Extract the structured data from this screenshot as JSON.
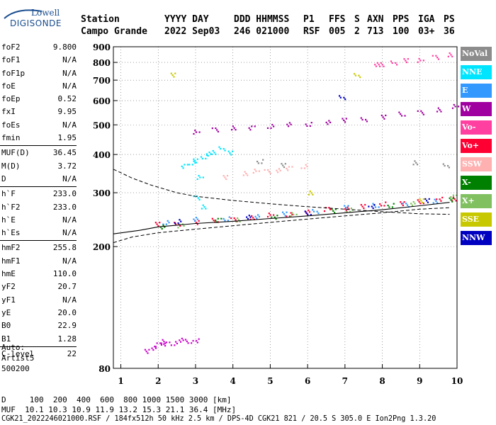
{
  "header": {
    "logo_top": "Lowell",
    "logo_main": "DIGISONDE",
    "labels": [
      "Station",
      "YYYY DAY",
      "DDD HHMMSS",
      "P1",
      "FFS",
      "S",
      "AXN",
      "PPS",
      "IGA",
      "PS"
    ],
    "values": [
      "Campo Grande",
      "2022 Sep03",
      "246 021000",
      "RSF",
      "005",
      "2",
      "713",
      "100",
      "03+",
      "36"
    ]
  },
  "params": [
    {
      "key": "foF2",
      "value": "9.800"
    },
    {
      "key": "foF1",
      "value": "N/A"
    },
    {
      "key": "foF1p",
      "value": "N/A"
    },
    {
      "key": "foE",
      "value": "N/A"
    },
    {
      "key": "foEp",
      "value": "0.52"
    },
    {
      "key": "fxI",
      "value": "9.95"
    },
    {
      "key": "foEs",
      "value": "N/A"
    },
    {
      "key": "fmin",
      "value": "1.95"
    },
    {
      "sep": true
    },
    {
      "key": "MUF(D)",
      "value": "36.45"
    },
    {
      "key": "M(D)",
      "value": "3.72"
    },
    {
      "key": "D",
      "value": "N/A"
    },
    {
      "sep": true
    },
    {
      "key": "h`F",
      "value": "233.0"
    },
    {
      "key": "h`F2",
      "value": "233.0"
    },
    {
      "key": "h`E",
      "value": "N/A"
    },
    {
      "key": "h`Es",
      "value": "N/A"
    },
    {
      "sep": true
    },
    {
      "key": "hmF2",
      "value": "255.8"
    },
    {
      "key": "hmF1",
      "value": "N/A"
    },
    {
      "key": "hmE",
      "value": "110.0"
    },
    {
      "key": "yF2",
      "value": "20.7"
    },
    {
      "key": "yF1",
      "value": "N/A"
    },
    {
      "key": "yE",
      "value": "20.0"
    },
    {
      "key": "B0",
      "value": "22.9"
    },
    {
      "key": "B1",
      "value": "1.28"
    },
    {
      "sep": true
    },
    {
      "key": "C-level",
      "value": "22"
    }
  ],
  "auto": {
    "line1": "Auto:",
    "line2": "Artist5",
    "line3": "500200"
  },
  "legend": [
    {
      "label": "NoVal",
      "color": "#8c8c8c"
    },
    {
      "label": "NNE",
      "color": "#00e5ff"
    },
    {
      "label": "E",
      "color": "#3399ff"
    },
    {
      "label": "W",
      "color": "#a000a0"
    },
    {
      "label": "Vo-",
      "color": "#ff40a0"
    },
    {
      "label": "Vo+",
      "color": "#ff0033"
    },
    {
      "label": "SSW",
      "color": "#ffb0b0"
    },
    {
      "label": "X-",
      "color": "#008000"
    },
    {
      "label": "X+",
      "color": "#80c060"
    },
    {
      "label": "SSE",
      "color": "#c8c800"
    },
    {
      "label": "NNW",
      "color": "#0000c0"
    }
  ],
  "footer": {
    "d_line": "D     100  200  400  600  800 1000 1500 3000 [km]",
    "muf_line": "MUF  10.1 10.3 10.9 11.9 13.2 15.3 21.1 36.4 [MHz]",
    "file_line": "CGK21_2022246021000.RSF / 184fx512h 50 kHz 2.5 km / DPS-4D CGK21 821 / 20.5 S 305.0 E Ion2Png 1.3.20"
  },
  "chart_data": {
    "type": "scatter",
    "x_ticks": [
      "1",
      "2",
      "3",
      "4",
      "5",
      "6",
      "7",
      "8",
      "9",
      "10"
    ],
    "y_ticks": [
      "80",
      "200",
      "300",
      "400",
      "500",
      "600",
      "700",
      "800",
      "900"
    ],
    "xlim": [
      0.8,
      10
    ],
    "ylim": [
      80,
      900
    ],
    "y_scale": "log",
    "grid": "dotted",
    "series": [
      {
        "name": "Vo+",
        "color": "#ff0033",
        "points": [
          [
            2,
            237
          ],
          [
            2.5,
            239
          ],
          [
            3,
            241
          ],
          [
            3.5,
            244
          ],
          [
            4,
            247
          ],
          [
            4.5,
            250
          ],
          [
            5,
            254
          ],
          [
            5.5,
            257
          ],
          [
            6,
            261
          ],
          [
            6.5,
            265
          ],
          [
            7,
            268
          ],
          [
            7.5,
            272
          ],
          [
            8,
            276
          ],
          [
            8.5,
            279
          ],
          [
            9,
            282
          ],
          [
            9.5,
            286
          ],
          [
            9.9,
            289
          ]
        ]
      },
      {
        "name": "E",
        "color": "#3399ff",
        "points": [
          [
            2.2,
            241
          ],
          [
            3,
            246
          ],
          [
            3.8,
            249
          ],
          [
            4.6,
            252
          ],
          [
            5.4,
            256
          ],
          [
            6.2,
            263
          ],
          [
            7,
            270
          ],
          [
            7.8,
            273
          ],
          [
            8.6,
            276
          ],
          [
            9.4,
            283
          ]
        ]
      },
      {
        "name": "W",
        "color": "#a000a0",
        "points": [
          [
            3,
            478
          ],
          [
            3.5,
            484
          ],
          [
            4,
            489
          ],
          [
            4.5,
            493
          ],
          [
            5,
            497
          ],
          [
            5.5,
            502
          ],
          [
            6,
            507
          ],
          [
            6.5,
            512
          ],
          [
            7,
            518
          ],
          [
            7.5,
            525
          ],
          [
            8,
            533
          ],
          [
            8.5,
            543
          ],
          [
            9,
            553
          ],
          [
            9.5,
            563
          ],
          [
            9.95,
            575
          ]
        ]
      },
      {
        "name": "Vo-",
        "color": "#ff40a0",
        "points": [
          [
            7.8,
            788
          ],
          [
            8,
            794
          ],
          [
            8.3,
            801
          ],
          [
            8.6,
            812
          ],
          [
            9,
            820
          ],
          [
            9.4,
            835
          ],
          [
            9.8,
            848
          ]
        ]
      },
      {
        "name": "NNE",
        "color": "#00e5ff",
        "points": [
          [
            2.7,
            368
          ],
          [
            2.9,
            376
          ],
          [
            3,
            385
          ],
          [
            3.2,
            395
          ],
          [
            3.3,
            402
          ],
          [
            3.5,
            410
          ],
          [
            3.7,
            420
          ],
          [
            3.9,
            405
          ],
          [
            3.1,
            340
          ],
          [
            3,
            290
          ],
          [
            3.2,
            270
          ]
        ]
      },
      {
        "name": "SSW",
        "color": "#ffb0b0",
        "points": [
          [
            4.3,
            350
          ],
          [
            4.6,
            355
          ],
          [
            4.9,
            352
          ],
          [
            5.2,
            358
          ],
          [
            5.5,
            362
          ],
          [
            5.9,
            366
          ],
          [
            3.8,
            340
          ]
        ]
      },
      {
        "name": "NoVal",
        "color": "#8c8c8c",
        "points": [
          [
            4.7,
            380
          ],
          [
            5.3,
            372
          ],
          [
            8.9,
            378
          ],
          [
            9.7,
            368
          ]
        ]
      },
      {
        "name": "X-",
        "color": "#008000",
        "points": [
          [
            2.1,
            233
          ],
          [
            3.6,
            244
          ],
          [
            5.1,
            252
          ],
          [
            6.7,
            263
          ],
          [
            8.2,
            273
          ],
          [
            9.8,
            287
          ]
        ]
      },
      {
        "name": "X+",
        "color": "#80c060",
        "points": [
          [
            2.6,
            236
          ],
          [
            4.1,
            246
          ],
          [
            5.6,
            255
          ],
          [
            7.1,
            266
          ],
          [
            8.8,
            278
          ],
          [
            9.9,
            291
          ]
        ]
      },
      {
        "name": "SSE",
        "color": "#c8c800",
        "points": [
          [
            2.4,
            728
          ],
          [
            7.3,
            732
          ],
          [
            9,
            284
          ],
          [
            6.1,
            300
          ]
        ]
      },
      {
        "name": "NNW",
        "color": "#0000c0",
        "points": [
          [
            2.5,
            243
          ],
          [
            4.4,
            250
          ],
          [
            6,
            260
          ],
          [
            7.7,
            272
          ],
          [
            9.2,
            283
          ],
          [
            6.9,
            620
          ]
        ]
      },
      {
        "name": "Es",
        "color": "#cc00cc",
        "points": [
          [
            1.9,
            94
          ],
          [
            2,
            96
          ],
          [
            2.1,
            98
          ],
          [
            2.2,
            97
          ],
          [
            2.4,
            97
          ],
          [
            2.6,
            99
          ],
          [
            2.8,
            99
          ],
          [
            3,
            99
          ],
          [
            1.7,
            91
          ]
        ]
      }
    ],
    "profile_curve": [
      [
        0.8,
        220
      ],
      [
        1.5,
        226
      ],
      [
        2,
        232
      ],
      [
        3,
        238
      ],
      [
        4,
        242
      ],
      [
        5,
        247
      ],
      [
        6,
        252
      ],
      [
        7,
        258
      ],
      [
        8,
        264
      ],
      [
        9,
        272
      ],
      [
        9.8,
        279
      ]
    ],
    "dashed_curve": [
      [
        0.8,
        358
      ],
      [
        1.3,
        335
      ],
      [
        1.8,
        318
      ],
      [
        2.5,
        300
      ],
      [
        3,
        292
      ],
      [
        4,
        283
      ],
      [
        5,
        276
      ],
      [
        6,
        270
      ],
      [
        7,
        265
      ],
      [
        8,
        260
      ],
      [
        9,
        256
      ],
      [
        9.8,
        255
      ]
    ],
    "dashed_lower": [
      [
        0.8,
        206
      ],
      [
        1.3,
        215
      ],
      [
        2,
        222
      ],
      [
        3,
        228
      ],
      [
        4,
        234
      ],
      [
        5,
        240
      ],
      [
        6,
        246
      ],
      [
        7,
        252
      ],
      [
        8,
        258
      ],
      [
        9,
        265
      ],
      [
        9.8,
        268
      ]
    ]
  }
}
